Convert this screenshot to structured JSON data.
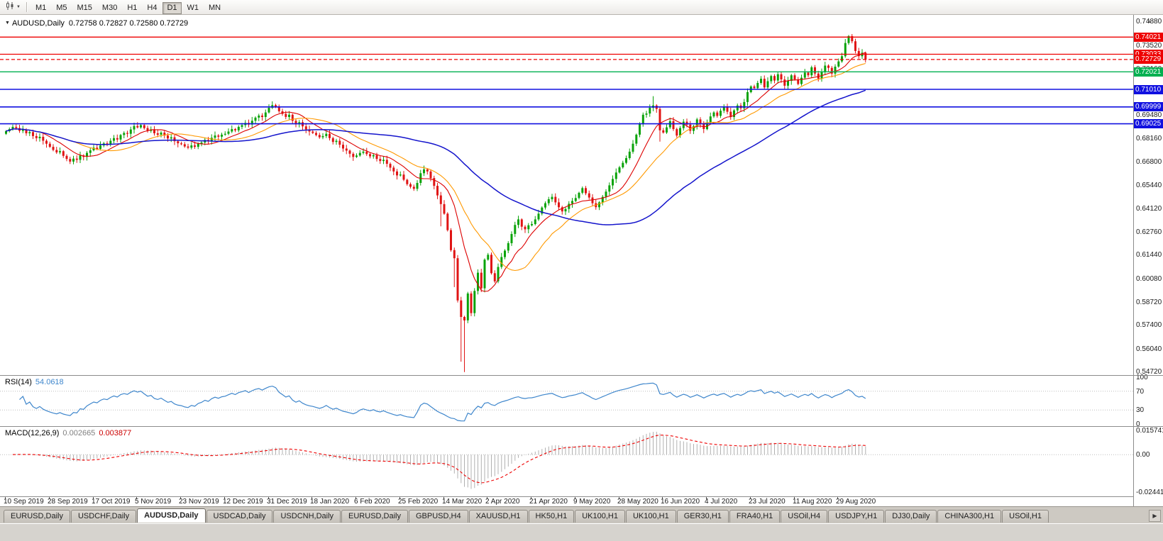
{
  "toolbar": {
    "timeframes": [
      "M1",
      "M5",
      "M15",
      "M30",
      "H1",
      "H4",
      "D1",
      "W1",
      "MN"
    ],
    "active_timeframe": "D1"
  },
  "chart": {
    "title": "AUDUSD,Daily",
    "ohlc": "0.72758 0.72827 0.72580 0.72729",
    "price_axis_labels": [
      "0.74880",
      "0.73520",
      "0.72160",
      "0.70800",
      "0.69480",
      "0.68160",
      "0.66800",
      "0.65440",
      "0.64120",
      "0.62760",
      "0.61440",
      "0.60080",
      "0.58720",
      "0.57400",
      "0.56040",
      "0.54720"
    ],
    "hlines": [
      {
        "price": 0.74021,
        "label": "0.74021",
        "color": "red"
      },
      {
        "price": 0.73033,
        "label": "0.73033",
        "color": "red"
      },
      {
        "price": 0.72729,
        "label": "0.72729",
        "color": "red",
        "style": "current"
      },
      {
        "price": 0.72021,
        "label": "0.72021",
        "color": "green"
      },
      {
        "price": 0.7101,
        "label": "0.71010",
        "color": "blue"
      },
      {
        "price": 0.69999,
        "label": "0.69999",
        "color": "blue"
      },
      {
        "price": 0.69025,
        "label": "0.69025",
        "color": "blue"
      }
    ],
    "date_labels": [
      "10 Sep 2019",
      "28 Sep 2019",
      "17 Oct 2019",
      "5 Nov 2019",
      "23 Nov 2019",
      "12 Dec 2019",
      "31 Dec 2019",
      "18 Jan 2020",
      "6 Feb 2020",
      "25 Feb 2020",
      "14 Mar 2020",
      "2 Apr 2020",
      "21 Apr 2020",
      "9 May 2020",
      "28 May 2020",
      "16 Jun 2020",
      "4 Jul 2020",
      "23 Jul 2020",
      "11 Aug 2020",
      "29 Aug 2020"
    ]
  },
  "rsi": {
    "label": "RSI(14)",
    "value": "54.0618",
    "axis_labels": [
      "100",
      "70",
      "30",
      "0"
    ]
  },
  "macd": {
    "label": "MACD(12,26,9)",
    "main_value": "0.002665",
    "signal_value": "0.003877",
    "axis_labels": [
      "0.015741",
      "0.00",
      "-0.024412"
    ]
  },
  "tabs": {
    "items": [
      "EURUSD,Daily",
      "USDCHF,Daily",
      "AUDUSD,Daily",
      "USDCAD,Daily",
      "USDCNH,Daily",
      "EURUSD,Daily",
      "GBPUSD,H4",
      "XAUUSD,H1",
      "HK50,H1",
      "UK100,H1",
      "UK100,H1",
      "GER30,H1",
      "FRA40,H1",
      "USOil,H4",
      "USDJPY,H1",
      "DJ30,Daily",
      "CHINA300,H1",
      "USOil,H1"
    ],
    "active_index": 2,
    "scroll_right_icon": "▶"
  },
  "colors": {
    "candle_up": "#0aa30a",
    "candle_down": "#e01414",
    "ma_fast": "#dd0000",
    "ma_mid": "#ff9900",
    "ma_slow": "#1414cc",
    "line_red": "#ee0000",
    "line_green": "#00b050",
    "line_blue": "#1010e0",
    "rsi_line": "#3e86cc",
    "level_dotted": "#bdbdbd",
    "macd_hist": "#b0b0b0",
    "macd_signal": "#ee0000"
  },
  "chart_data": {
    "type": "candlestick",
    "symbol": "AUDUSD",
    "timeframe": "Daily",
    "first_open": 0.6845,
    "wick_pad": 0.0018,
    "closes": [
      0.686,
      0.6872,
      0.6885,
      0.6878,
      0.6862,
      0.687,
      0.6848,
      0.6855,
      0.6832,
      0.682,
      0.6828,
      0.6805,
      0.6788,
      0.677,
      0.6752,
      0.6738,
      0.6745,
      0.6718,
      0.67,
      0.6685,
      0.6702,
      0.6695,
      0.672,
      0.6712,
      0.6735,
      0.675,
      0.6765,
      0.6758,
      0.6778,
      0.679,
      0.6785,
      0.6805,
      0.682,
      0.6812,
      0.6838,
      0.685,
      0.6845,
      0.687,
      0.689,
      0.6882,
      0.6895,
      0.6878,
      0.6862,
      0.687,
      0.6848,
      0.684,
      0.6852,
      0.6835,
      0.6818,
      0.6825,
      0.6802,
      0.679,
      0.6785,
      0.6772,
      0.6765,
      0.6778,
      0.677,
      0.6788,
      0.6795,
      0.681,
      0.6802,
      0.6822,
      0.6835,
      0.6828,
      0.684,
      0.6845,
      0.6858,
      0.6872,
      0.6865,
      0.6885,
      0.6895,
      0.6908,
      0.6898,
      0.692,
      0.6938,
      0.695,
      0.6942,
      0.6968,
      0.6995,
      0.701,
      0.7002,
      0.6975,
      0.696,
      0.6942,
      0.6955,
      0.692,
      0.69,
      0.6912,
      0.6888,
      0.687,
      0.6858,
      0.685,
      0.6838,
      0.6825,
      0.6832,
      0.6845,
      0.682,
      0.6798,
      0.6805,
      0.6782,
      0.676,
      0.6748,
      0.673,
      0.6712,
      0.672,
      0.6735,
      0.6742,
      0.6728,
      0.6715,
      0.6722,
      0.67,
      0.6688,
      0.6695,
      0.6672,
      0.665,
      0.6628,
      0.6605,
      0.661,
      0.658,
      0.6555,
      0.654,
      0.6528,
      0.6562,
      0.6618,
      0.664,
      0.6628,
      0.659,
      0.6545,
      0.649,
      0.644,
      0.6385,
      0.629,
      0.6175,
      0.6128,
      0.5885,
      0.579,
      0.577,
      0.5925,
      0.5812,
      0.594,
      0.6045,
      0.5955,
      0.612,
      0.6148,
      0.6042,
      0.5995,
      0.6078,
      0.6135,
      0.6172,
      0.6215,
      0.6268,
      0.632,
      0.6352,
      0.631,
      0.6295,
      0.6318,
      0.6325,
      0.6352,
      0.6385,
      0.642,
      0.6445,
      0.6468,
      0.6482,
      0.645,
      0.6422,
      0.6398,
      0.6412,
      0.6442,
      0.6458,
      0.6475,
      0.6505,
      0.6532,
      0.6502,
      0.6478,
      0.6445,
      0.6422,
      0.645,
      0.6482,
      0.6512,
      0.6548,
      0.6585,
      0.6622,
      0.6652,
      0.6678,
      0.6705,
      0.6742,
      0.6788,
      0.684,
      0.6902,
      0.6955,
      0.6962,
      0.6995,
      0.7008,
      0.6988,
      0.6865,
      0.6852,
      0.6882,
      0.6918,
      0.6872,
      0.6835,
      0.6878,
      0.6915,
      0.6898,
      0.6862,
      0.689,
      0.6928,
      0.6902,
      0.6872,
      0.6908,
      0.6945,
      0.6968,
      0.6948,
      0.6978,
      0.6998,
      0.6972,
      0.6942,
      0.698,
      0.7008,
      0.6992,
      0.7028,
      0.7085,
      0.7118,
      0.7108,
      0.7138,
      0.7162,
      0.7112,
      0.7148,
      0.7178,
      0.7152,
      0.7188,
      0.7158,
      0.7122,
      0.715,
      0.7182,
      0.7158,
      0.7132,
      0.7168,
      0.7198,
      0.7182,
      0.7228,
      0.7192,
      0.7162,
      0.7202,
      0.7238,
      0.7225,
      0.7192,
      0.7232,
      0.7262,
      0.7292,
      0.7368,
      0.7408,
      0.7378,
      0.7322,
      0.7292,
      0.7312,
      0.7273
    ],
    "high_overrides": {
      "79": 0.7032,
      "192": 0.7062,
      "250": 0.7414
    },
    "low_overrides": {
      "19": 0.6671,
      "129": 0.6312,
      "133": 0.5962,
      "135": 0.5532,
      "136": 0.5472,
      "194": 0.68
    },
    "view": {
      "price_max": 0.753,
      "price_min": 0.5455
    },
    "moving_averages": [
      {
        "period": 10,
        "color_key": "ma_fast"
      },
      {
        "period": 21,
        "color_key": "ma_mid"
      },
      {
        "period": 60,
        "color_key": "ma_slow"
      }
    ],
    "rsi": {
      "period": 14,
      "levels": [
        70,
        30
      ],
      "view_max": 104,
      "view_min": -4,
      "current": 54.0618
    },
    "macd": {
      "fast": 12,
      "slow": 26,
      "signal": 9,
      "view_max": 0.0185,
      "view_min": -0.027,
      "axis_ticks": [
        0.015741,
        0,
        -0.024412
      ],
      "current_main": 0.002665,
      "current_signal": 0.003877
    }
  }
}
